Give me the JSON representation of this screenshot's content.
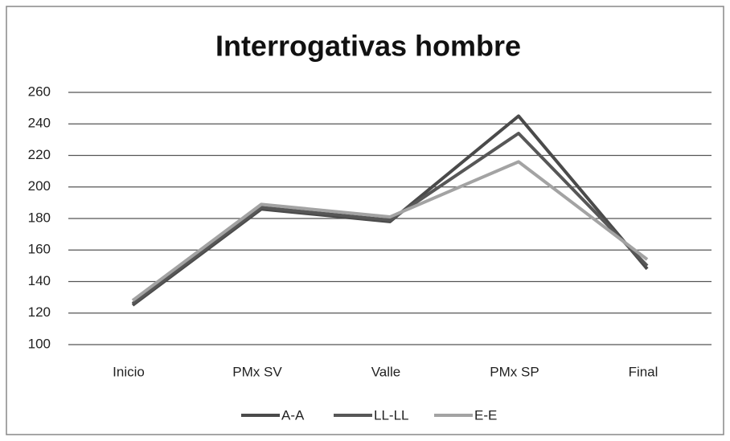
{
  "chart_data": {
    "type": "line",
    "title": "Interrogativas hombre",
    "categories": [
      "Inicio",
      "PMx SV",
      "Valle",
      "PMx SP",
      "Final"
    ],
    "series": [
      {
        "name": "A-A",
        "color": "#4a4a4a",
        "values": [
          125,
          186,
          178,
          245,
          148
        ]
      },
      {
        "name": "LL-LL",
        "color": "#575757",
        "values": [
          126,
          187,
          179,
          234,
          150
        ]
      },
      {
        "name": "E-E",
        "color": "#a3a3a3",
        "values": [
          128,
          189,
          181,
          216,
          154
        ]
      }
    ],
    "ylim": [
      100,
      260
    ],
    "yticks": [
      100,
      120,
      140,
      160,
      180,
      200,
      220,
      240,
      260
    ],
    "grid": true,
    "legend": "bottom"
  }
}
